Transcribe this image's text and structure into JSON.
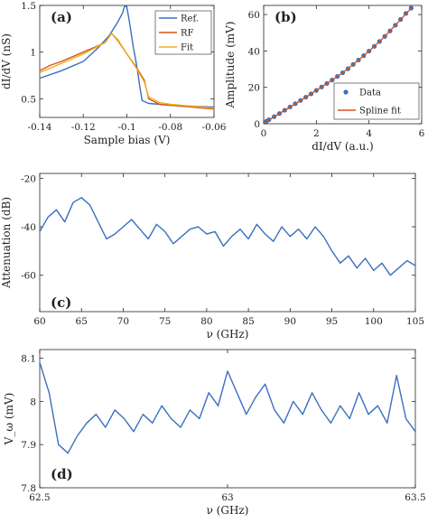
{
  "chart_data": [
    {
      "panel": "(a)",
      "type": "line",
      "xlabel": "Sample bias (V)",
      "ylabel": "dI/dV (nS)",
      "xlim": [
        -0.14,
        -0.06
      ],
      "ylim": [
        0.3,
        1.5
      ],
      "xticks": [
        "-0.14",
        "-0.12",
        "-0.1",
        "-0.08",
        "-0.06"
      ],
      "yticks": [
        "0.5",
        "1",
        "1.5"
      ],
      "legend_position": "top-right",
      "series": [
        {
          "name": "Ref.",
          "color": "#3b6fc0",
          "x": [
            -0.14,
            -0.13,
            -0.12,
            -0.113,
            -0.108,
            -0.104,
            -0.102,
            -0.101,
            -0.1,
            -0.099,
            -0.098,
            -0.097,
            -0.096,
            -0.095,
            -0.094,
            -0.093,
            -0.09,
            -0.08,
            -0.07,
            -0.06
          ],
          "y": [
            0.72,
            0.8,
            0.9,
            1.05,
            1.18,
            1.33,
            1.42,
            1.5,
            1.48,
            1.35,
            1.2,
            1.05,
            0.92,
            0.78,
            0.62,
            0.48,
            0.45,
            0.43,
            0.42,
            0.41
          ]
        },
        {
          "name": "RF",
          "color": "#d9541a",
          "x": [
            -0.14,
            -0.135,
            -0.13,
            -0.125,
            -0.12,
            -0.115,
            -0.11,
            -0.107,
            -0.104,
            -0.1,
            -0.096,
            -0.092,
            -0.09,
            -0.085,
            -0.08,
            -0.075,
            -0.07,
            -0.065,
            -0.06
          ],
          "y": [
            0.8,
            0.86,
            0.9,
            0.95,
            1.0,
            1.05,
            1.1,
            1.2,
            1.12,
            0.98,
            0.85,
            0.7,
            0.5,
            0.44,
            0.43,
            0.42,
            0.41,
            0.4,
            0.39
          ]
        },
        {
          "name": "Fit",
          "color": "#edb120",
          "x": [
            -0.14,
            -0.13,
            -0.12,
            -0.11,
            -0.107,
            -0.104,
            -0.1,
            -0.096,
            -0.092,
            -0.09,
            -0.085,
            -0.08,
            -0.07,
            -0.06
          ],
          "y": [
            0.78,
            0.88,
            0.98,
            1.1,
            1.2,
            1.13,
            0.98,
            0.84,
            0.68,
            0.52,
            0.46,
            0.44,
            0.42,
            0.4
          ]
        }
      ]
    },
    {
      "panel": "(b)",
      "type": "scatter",
      "xlabel": "dI/dV (a.u.)",
      "ylabel": "Amplitude (mV)",
      "xlim": [
        0,
        6
      ],
      "ylim": [
        0,
        65
      ],
      "xticks": [
        "0",
        "2",
        "4",
        "6"
      ],
      "yticks": [
        "0",
        "20",
        "40",
        "60"
      ],
      "legend_position": "bottom-right",
      "series": [
        {
          "name": "Data",
          "color": "#3b6fc0",
          "x": [
            0.0,
            0.1,
            0.2,
            0.4,
            0.6,
            0.8,
            1.0,
            1.2,
            1.4,
            1.6,
            1.8,
            2.0,
            2.2,
            2.4,
            2.6,
            2.8,
            3.0,
            3.2,
            3.4,
            3.6,
            3.8,
            4.0,
            4.2,
            4.4,
            4.6,
            4.8,
            5.0,
            5.2,
            5.4,
            5.6
          ],
          "y": [
            0.5,
            1.3,
            2.2,
            3.9,
            5.6,
            7.4,
            9.2,
            11.0,
            12.8,
            14.6,
            16.4,
            18.3,
            20.2,
            22.1,
            24.0,
            26.0,
            28.0,
            30.2,
            32.6,
            35.0,
            37.4,
            39.9,
            42.5,
            45.2,
            48.0,
            51.0,
            54.1,
            57.3,
            60.6,
            63.5
          ]
        },
        {
          "name": "Spline fit",
          "color": "#d9541a",
          "x": [
            0.0,
            0.5,
            1.0,
            1.5,
            2.0,
            2.5,
            3.0,
            3.5,
            4.0,
            4.5,
            5.0,
            5.5,
            5.6
          ],
          "y": [
            0.5,
            4.7,
            9.2,
            13.7,
            18.3,
            23.0,
            28.0,
            33.8,
            39.9,
            46.6,
            54.1,
            61.9,
            63.5
          ]
        }
      ]
    },
    {
      "panel": "(c)",
      "type": "line",
      "xlabel": "ν (GHz)",
      "ylabel": "Attenuation (dB)",
      "xlim": [
        60,
        105
      ],
      "ylim": [
        -75,
        -18
      ],
      "xticks": [
        "60",
        "65",
        "70",
        "75",
        "80",
        "85",
        "90",
        "95",
        "100",
        "105"
      ],
      "yticks": [
        "-60",
        "-40",
        "-20"
      ],
      "series": [
        {
          "color": "#3b6fc0",
          "x": [
            60,
            61,
            62,
            63,
            64,
            65,
            66,
            67,
            68,
            69,
            70,
            71,
            72,
            73,
            74,
            75,
            76,
            77,
            78,
            79,
            80,
            81,
            82,
            83,
            84,
            85,
            86,
            87,
            88,
            89,
            90,
            91,
            92,
            93,
            94,
            95,
            96,
            97,
            98,
            99,
            100,
            101,
            102,
            103,
            104,
            105
          ],
          "y": [
            -42,
            -36,
            -33,
            -38,
            -30,
            -28,
            -31,
            -38,
            -45,
            -43,
            -40,
            -37,
            -41,
            -45,
            -39,
            -42,
            -47,
            -44,
            -41,
            -40,
            -43,
            -42,
            -48,
            -44,
            -41,
            -45,
            -39,
            -43,
            -46,
            -40,
            -44,
            -41,
            -45,
            -40,
            -44,
            -50,
            -55,
            -52,
            -57,
            -53,
            -58,
            -55,
            -60,
            -57,
            -54,
            -56
          ]
        }
      ]
    },
    {
      "panel": "(d)",
      "type": "line",
      "xlabel": "ν (GHz)",
      "ylabel": "V_ω (mV)",
      "xlim": [
        62.5,
        63.5
      ],
      "ylim": [
        7.8,
        8.12
      ],
      "xticks": [
        "62.5",
        "63",
        "63.5"
      ],
      "yticks": [
        "7.8",
        "7.9",
        "8",
        "8.1"
      ],
      "series": [
        {
          "color": "#3b6fc0",
          "x": [
            62.5,
            62.525,
            62.55,
            62.575,
            62.6,
            62.625,
            62.65,
            62.675,
            62.7,
            62.725,
            62.75,
            62.775,
            62.8,
            62.825,
            62.85,
            62.875,
            62.9,
            62.925,
            62.95,
            62.975,
            63.0,
            63.025,
            63.05,
            63.075,
            63.1,
            63.125,
            63.15,
            63.175,
            63.2,
            63.225,
            63.25,
            63.275,
            63.3,
            63.325,
            63.35,
            63.375,
            63.4,
            63.425,
            63.45,
            63.475,
            63.5
          ],
          "y": [
            8.09,
            8.02,
            7.9,
            7.88,
            7.92,
            7.95,
            7.97,
            7.94,
            7.98,
            7.96,
            7.93,
            7.97,
            7.95,
            7.99,
            7.96,
            7.94,
            7.98,
            7.96,
            8.02,
            7.99,
            8.07,
            8.02,
            7.97,
            8.01,
            8.04,
            7.98,
            7.95,
            8.0,
            7.97,
            8.02,
            7.98,
            7.95,
            7.99,
            7.96,
            8.02,
            7.97,
            7.99,
            7.95,
            8.06,
            7.96,
            7.93
          ]
        }
      ]
    }
  ]
}
